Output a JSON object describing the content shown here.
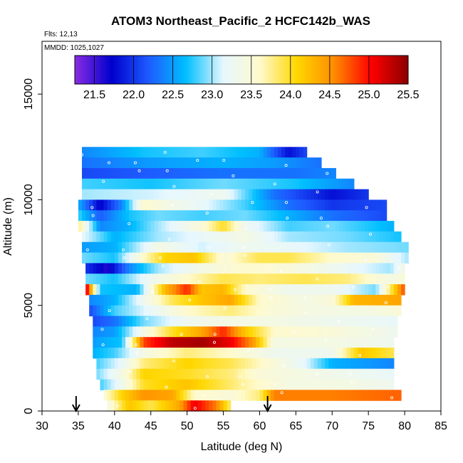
{
  "chart_data": {
    "type": "heatmap",
    "title": "ATOM3 Northeast_Pacific_2 HCFC142b_WAS",
    "flights_label": "Flts: 12,13",
    "mmdd_label": "MMDD: 1025,1027",
    "xlabel": "Latitude (deg N)",
    "ylabel": "Altitude (m)",
    "xlim": [
      30,
      85
    ],
    "ylim": [
      0,
      17500
    ],
    "x_ticks": [
      "30",
      "35",
      "40",
      "45",
      "50",
      "55",
      "60",
      "65",
      "70",
      "75",
      "80",
      "85"
    ],
    "y_ticks": [
      "0",
      "5000",
      "10000",
      "15000"
    ],
    "colorbar": {
      "min": 21.25,
      "max": 25.5,
      "tick_labels": [
        "21.5",
        "22.0",
        "22.5",
        "23.0",
        "23.5",
        "24.0",
        "24.5",
        "25.0",
        "25.5"
      ],
      "colors": [
        "#8a2be2",
        "#0000cd",
        "#1e5bff",
        "#00bfff",
        "#e6f7ff",
        "#fffacd",
        "#ffd700",
        "#ff8c00",
        "#ff0000",
        "#8b0000"
      ]
    },
    "markers": [
      {
        "name": "down-arrow-1",
        "lat": 34.7
      },
      {
        "name": "down-arrow-2",
        "lat": 61.1
      }
    ],
    "layers": [
      {
        "alt": 12250,
        "lat_start": 35.5,
        "lat_end": 66.5,
        "stops": [
          [
            35.5,
            22.4
          ],
          [
            44,
            22.7
          ],
          [
            52,
            22.8
          ],
          [
            60,
            22.6
          ],
          [
            64,
            21.8
          ],
          [
            66.5,
            22.1
          ]
        ]
      },
      {
        "alt": 11750,
        "lat_start": 35.5,
        "lat_end": 68.5,
        "stops": [
          [
            35.5,
            22.3
          ],
          [
            45,
            22.5
          ],
          [
            55,
            22.6
          ],
          [
            62,
            22.5
          ],
          [
            68.5,
            22.3
          ]
        ]
      },
      {
        "alt": 11250,
        "lat_start": 35.5,
        "lat_end": 70.5,
        "stops": [
          [
            35.5,
            22.1
          ],
          [
            45,
            22.2
          ],
          [
            55,
            22.3
          ],
          [
            65,
            22.3
          ],
          [
            70.5,
            22.4
          ]
        ]
      },
      {
        "alt": 10750,
        "lat_start": 35.5,
        "lat_end": 73,
        "stops": [
          [
            35.5,
            22.8
          ],
          [
            45,
            22.7
          ],
          [
            55,
            22.9
          ],
          [
            65,
            22.7
          ],
          [
            73,
            22.4
          ]
        ]
      },
      {
        "alt": 10250,
        "lat_start": 35.5,
        "lat_end": 75,
        "stops": [
          [
            35.5,
            23.0
          ],
          [
            45,
            23.1
          ],
          [
            55,
            23.3
          ],
          [
            62,
            22.3
          ],
          [
            70,
            21.8
          ],
          [
            75,
            22.0
          ]
        ]
      },
      {
        "alt": 9750,
        "lat_start": 35,
        "lat_end": 77.5,
        "stops": [
          [
            35,
            22.6
          ],
          [
            38,
            21.7
          ],
          [
            41,
            22.4
          ],
          [
            44,
            23.6
          ],
          [
            47,
            23.4
          ],
          [
            52,
            23.2
          ],
          [
            58,
            22.8
          ],
          [
            64,
            22.3
          ],
          [
            70,
            22.0
          ],
          [
            77.5,
            22.1
          ]
        ]
      },
      {
        "alt": 9250,
        "lat_start": 35,
        "lat_end": 77.5,
        "stops": [
          [
            35,
            22.8
          ],
          [
            38,
            22.2
          ],
          [
            42,
            22.7
          ],
          [
            46,
            22.9
          ],
          [
            52,
            22.8
          ],
          [
            58,
            22.9
          ],
          [
            64,
            22.6
          ],
          [
            70,
            22.3
          ],
          [
            77.5,
            22.1
          ]
        ]
      },
      {
        "alt": 8750,
        "lat_start": 35,
        "lat_end": 78.5,
        "stops": [
          [
            35,
            23.8
          ],
          [
            38,
            22.4
          ],
          [
            42,
            22.6
          ],
          [
            46,
            23.0
          ],
          [
            52,
            23.5
          ],
          [
            55,
            24.0
          ],
          [
            58,
            23.3
          ],
          [
            64,
            22.8
          ],
          [
            70,
            22.9
          ],
          [
            78.5,
            22.6
          ]
        ]
      },
      {
        "alt": 8250,
        "lat_start": 35.5,
        "lat_end": 79.5,
        "stops": [
          [
            35.5,
            23.2
          ],
          [
            40,
            22.6
          ],
          [
            46,
            23.0
          ],
          [
            52,
            23.2
          ],
          [
            58,
            23.4
          ],
          [
            64,
            23.0
          ],
          [
            72,
            22.9
          ],
          [
            79.5,
            22.7
          ]
        ]
      },
      {
        "alt": 7750,
        "lat_start": 35.5,
        "lat_end": 80.5,
        "stops": [
          [
            35.5,
            22.5
          ],
          [
            40,
            22.6
          ],
          [
            46,
            23.4
          ],
          [
            52,
            23.1
          ],
          [
            58,
            23.3
          ],
          [
            64,
            23.2
          ],
          [
            72,
            23.0
          ],
          [
            80.5,
            22.9
          ]
        ]
      },
      {
        "alt": 7250,
        "lat_start": 35.5,
        "lat_end": 80.5,
        "stops": [
          [
            35.5,
            22.9
          ],
          [
            40,
            22.7
          ],
          [
            44,
            23.6
          ],
          [
            47,
            24.1
          ],
          [
            51,
            24.2
          ],
          [
            55,
            23.5
          ],
          [
            60,
            23.9
          ],
          [
            64,
            23.9
          ],
          [
            70,
            23.6
          ],
          [
            76,
            23.5
          ],
          [
            80.5,
            23.0
          ]
        ]
      },
      {
        "alt": 6750,
        "lat_start": 36,
        "lat_end": 80,
        "stops": [
          [
            36,
            22.0
          ],
          [
            39,
            21.6
          ],
          [
            42,
            22.4
          ],
          [
            46,
            23.0
          ],
          [
            52,
            23.4
          ],
          [
            58,
            23.6
          ],
          [
            64,
            23.5
          ],
          [
            70,
            23.3
          ],
          [
            78,
            23.0
          ],
          [
            80,
            23.4
          ]
        ]
      },
      {
        "alt": 6250,
        "lat_start": 36,
        "lat_end": 80,
        "stops": [
          [
            36,
            22.9
          ],
          [
            40,
            22.7
          ],
          [
            45,
            23.3
          ],
          [
            50,
            23.6
          ],
          [
            55,
            23.9
          ],
          [
            60,
            23.8
          ],
          [
            66,
            23.9
          ],
          [
            72,
            23.8
          ],
          [
            78,
            23.4
          ],
          [
            80,
            23.5
          ]
        ]
      },
      {
        "alt": 5750,
        "lat_start": 36,
        "lat_end": 80,
        "stops": [
          [
            36,
            25.3
          ],
          [
            38,
            22.7
          ],
          [
            43,
            22.6
          ],
          [
            47,
            24.3
          ],
          [
            50,
            24.9
          ],
          [
            52,
            24.2
          ],
          [
            55,
            24.3
          ],
          [
            58,
            23.6
          ],
          [
            64,
            23.3
          ],
          [
            70,
            23.3
          ],
          [
            76,
            22.9
          ],
          [
            80,
            24.8
          ]
        ]
      },
      {
        "alt": 5250,
        "lat_start": 36.5,
        "lat_end": 79.5,
        "stops": [
          [
            36.5,
            22.4
          ],
          [
            40,
            22.6
          ],
          [
            44,
            23.3
          ],
          [
            48,
            23.9
          ],
          [
            52,
            24.2
          ],
          [
            56,
            24.4
          ],
          [
            60,
            23.6
          ],
          [
            66,
            23.4
          ],
          [
            70,
            23.5
          ],
          [
            73,
            24.3
          ],
          [
            79.5,
            24.4
          ]
        ]
      },
      {
        "alt": 4750,
        "lat_start": 36.5,
        "lat_end": 79.5,
        "stops": [
          [
            36.5,
            22.1
          ],
          [
            40,
            22.8
          ],
          [
            45,
            23.2
          ],
          [
            50,
            23.6
          ],
          [
            56,
            23.8
          ],
          [
            62,
            23.5
          ],
          [
            68,
            23.4
          ],
          [
            74,
            23.4
          ],
          [
            79.5,
            23.5
          ]
        ]
      },
      {
        "alt": 4250,
        "lat_start": 37,
        "lat_end": 79,
        "stops": [
          [
            37,
            22.1
          ],
          [
            40,
            22.3
          ],
          [
            44,
            22.9
          ],
          [
            50,
            23.3
          ],
          [
            56,
            23.4
          ],
          [
            62,
            23.4
          ],
          [
            70,
            23.3
          ],
          [
            79,
            23.2
          ]
        ]
      },
      {
        "alt": 3750,
        "lat_start": 37,
        "lat_end": 79,
        "stops": [
          [
            37,
            22.4
          ],
          [
            40,
            22.5
          ],
          [
            44,
            23.4
          ],
          [
            48,
            24.0
          ],
          [
            52,
            24.4
          ],
          [
            55,
            24.9
          ],
          [
            58,
            24.2
          ],
          [
            62,
            23.6
          ],
          [
            70,
            23.5
          ],
          [
            79,
            23.3
          ]
        ]
      },
      {
        "alt": 3250,
        "lat_start": 37,
        "lat_end": 78.5,
        "stops": [
          [
            37,
            22.5
          ],
          [
            41,
            22.7
          ],
          [
            44,
            24.8
          ],
          [
            48,
            25.3
          ],
          [
            52,
            25.4
          ],
          [
            56,
            25.1
          ],
          [
            59,
            24.5
          ],
          [
            62,
            23.4
          ],
          [
            70,
            23.4
          ],
          [
            78.5,
            23.3
          ]
        ]
      },
      {
        "alt": 2750,
        "lat_start": 37,
        "lat_end": 78.5,
        "stops": [
          [
            37,
            22.6
          ],
          [
            40,
            22.8
          ],
          [
            44,
            23.4
          ],
          [
            50,
            23.8
          ],
          [
            56,
            23.6
          ],
          [
            62,
            23.3
          ],
          [
            70,
            23.3
          ],
          [
            74,
            24.2
          ],
          [
            78.5,
            23.9
          ]
        ]
      },
      {
        "alt": 2250,
        "lat_start": 37.5,
        "lat_end": 78.5,
        "stops": [
          [
            37.5,
            22.8
          ],
          [
            41,
            23.2
          ],
          [
            44,
            23.8
          ],
          [
            50,
            24.1
          ],
          [
            56,
            23.9
          ],
          [
            62,
            23.5
          ],
          [
            66,
            23.2
          ],
          [
            70,
            22.6
          ],
          [
            78.5,
            22.4
          ]
        ]
      },
      {
        "alt": 1750,
        "lat_start": 37.5,
        "lat_end": 78.5,
        "stops": [
          [
            37.5,
            22.9
          ],
          [
            41,
            23.4
          ],
          [
            44,
            24.1
          ],
          [
            50,
            24.0
          ],
          [
            56,
            23.8
          ],
          [
            60,
            23.5
          ],
          [
            66,
            23.4
          ],
          [
            72,
            23.3
          ],
          [
            78.5,
            23.2
          ]
        ]
      },
      {
        "alt": 1250,
        "lat_start": 38,
        "lat_end": 78.5,
        "stops": [
          [
            38,
            22.8
          ],
          [
            41,
            23.3
          ],
          [
            44,
            24.0
          ],
          [
            50,
            24.2
          ],
          [
            55,
            23.9
          ],
          [
            58,
            23.7
          ],
          [
            64,
            23.4
          ],
          [
            72,
            23.4
          ],
          [
            78.5,
            23.3
          ]
        ]
      },
      {
        "alt": 750,
        "lat_start": 38.5,
        "lat_end": 79.5,
        "stops": [
          [
            38.5,
            23.5
          ],
          [
            41,
            24.1
          ],
          [
            44,
            24.5
          ],
          [
            48,
            24.4
          ],
          [
            51,
            23.6
          ],
          [
            56,
            23.5
          ],
          [
            60,
            23.8
          ],
          [
            62,
            24.6
          ],
          [
            70,
            24.6
          ],
          [
            79.5,
            24.7
          ]
        ]
      },
      {
        "alt": 250,
        "lat_start": 39,
        "lat_end": 56,
        "stops": [
          [
            39,
            23.4
          ],
          [
            42,
            24.2
          ],
          [
            45,
            23.9
          ],
          [
            49,
            24.4
          ],
          [
            51,
            25.1
          ],
          [
            54,
            24.6
          ],
          [
            56,
            23.8
          ]
        ]
      }
    ]
  }
}
